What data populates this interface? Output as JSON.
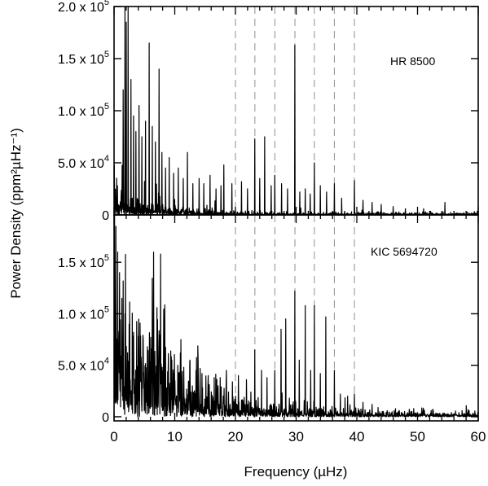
{
  "figure": {
    "xlabel": "Frequency (µHz)",
    "ylabel": "Power Density (ppm²µHz⁻¹)",
    "colors": {
      "axes": "#000000",
      "trace": "#000000",
      "guide": "#999999",
      "background": "#ffffff"
    }
  },
  "chart_data": [
    {
      "type": "line",
      "panel": "top",
      "label": "HR 8500",
      "xlim": [
        0,
        60
      ],
      "ylim": [
        0,
        200000
      ],
      "yticks": [
        {
          "value": 0,
          "mantissa": "0",
          "exp": ""
        },
        {
          "value": 50000,
          "mantissa": "5.0 x 10",
          "exp": "4"
        },
        {
          "value": 100000,
          "mantissa": "1.0 x 10",
          "exp": "5"
        },
        {
          "value": 150000,
          "mantissa": "1.5 x 10",
          "exp": "5"
        },
        {
          "value": 200000,
          "mantissa": "2.0 x 10",
          "exp": "5"
        }
      ],
      "vlines": [
        20.0,
        23.2,
        26.5,
        29.8,
        33.0,
        36.3,
        39.6
      ],
      "background": {
        "start": 20000,
        "decay": 6.5,
        "noise": 1200
      },
      "peaks": [
        {
          "x": 1.5,
          "y": 120000
        },
        {
          "x": 1.8,
          "y": 205000
        },
        {
          "x": 2.0,
          "y": 185000
        },
        {
          "x": 2.3,
          "y": 200000
        },
        {
          "x": 2.8,
          "y": 130000
        },
        {
          "x": 3.2,
          "y": 95000
        },
        {
          "x": 3.6,
          "y": 80000
        },
        {
          "x": 4.1,
          "y": 105000
        },
        {
          "x": 4.6,
          "y": 75000
        },
        {
          "x": 5.2,
          "y": 90000
        },
        {
          "x": 5.8,
          "y": 165000
        },
        {
          "x": 6.3,
          "y": 85000
        },
        {
          "x": 6.8,
          "y": 70000
        },
        {
          "x": 7.4,
          "y": 140000
        },
        {
          "x": 7.9,
          "y": 60000
        },
        {
          "x": 8.5,
          "y": 45000
        },
        {
          "x": 9.1,
          "y": 55000
        },
        {
          "x": 9.8,
          "y": 40000
        },
        {
          "x": 10.6,
          "y": 45000
        },
        {
          "x": 11.4,
          "y": 35000
        },
        {
          "x": 12.1,
          "y": 60000
        },
        {
          "x": 13.0,
          "y": 30000
        },
        {
          "x": 14.0,
          "y": 35000
        },
        {
          "x": 14.8,
          "y": 30000
        },
        {
          "x": 15.8,
          "y": 38000
        },
        {
          "x": 16.8,
          "y": 25000
        },
        {
          "x": 17.6,
          "y": 28000
        },
        {
          "x": 18.1,
          "y": 48000
        },
        {
          "x": 19.4,
          "y": 30000
        },
        {
          "x": 21.0,
          "y": 32000
        },
        {
          "x": 22.0,
          "y": 25000
        },
        {
          "x": 23.2,
          "y": 73000
        },
        {
          "x": 24.0,
          "y": 35000
        },
        {
          "x": 24.8,
          "y": 75000
        },
        {
          "x": 25.9,
          "y": 28000
        },
        {
          "x": 26.5,
          "y": 38000
        },
        {
          "x": 27.6,
          "y": 30000
        },
        {
          "x": 28.6,
          "y": 25000
        },
        {
          "x": 29.8,
          "y": 163000
        },
        {
          "x": 30.6,
          "y": 22000
        },
        {
          "x": 31.5,
          "y": 25000
        },
        {
          "x": 32.3,
          "y": 20000
        },
        {
          "x": 33.0,
          "y": 50000
        },
        {
          "x": 34.0,
          "y": 28000
        },
        {
          "x": 35.0,
          "y": 22000
        },
        {
          "x": 36.3,
          "y": 30000
        },
        {
          "x": 37.5,
          "y": 16000
        },
        {
          "x": 39.6,
          "y": 33000
        },
        {
          "x": 41.0,
          "y": 14000
        },
        {
          "x": 42.5,
          "y": 12000
        },
        {
          "x": 44.0,
          "y": 10000
        },
        {
          "x": 46.0,
          "y": 8000
        },
        {
          "x": 48.0,
          "y": 6000
        },
        {
          "x": 51.0,
          "y": 6000
        },
        {
          "x": 54.5,
          "y": 12000
        }
      ]
    },
    {
      "type": "line",
      "panel": "bottom",
      "label": "KIC 5694720",
      "xlim": [
        0,
        60
      ],
      "ylim": [
        -4000,
        196000
      ],
      "yticks": [
        {
          "value": 0,
          "mantissa": "0",
          "exp": ""
        },
        {
          "value": 50000,
          "mantissa": "5.0 x 10",
          "exp": "4"
        },
        {
          "value": 100000,
          "mantissa": "1.0 x 10",
          "exp": "5"
        },
        {
          "value": 150000,
          "mantissa": "1.5 x 10",
          "exp": "5"
        }
      ],
      "vlines": [
        20.0,
        23.2,
        26.5,
        29.8,
        33.0,
        36.3,
        39.6
      ],
      "background": {
        "start": 95000,
        "decay": 10,
        "noise": 2500
      },
      "peaks": [
        {
          "x": 0.1,
          "y": 196000
        },
        {
          "x": 0.3,
          "y": 185000
        },
        {
          "x": 0.6,
          "y": 160000
        },
        {
          "x": 0.9,
          "y": 140000
        },
        {
          "x": 1.3,
          "y": 115000
        },
        {
          "x": 1.8,
          "y": 100000
        },
        {
          "x": 2.5,
          "y": 90000
        },
        {
          "x": 3.2,
          "y": 82000
        },
        {
          "x": 4.0,
          "y": 78000
        },
        {
          "x": 4.8,
          "y": 72000
        },
        {
          "x": 5.5,
          "y": 68000
        },
        {
          "x": 6.5,
          "y": 160000
        },
        {
          "x": 7.5,
          "y": 62000
        },
        {
          "x": 8.5,
          "y": 58000
        },
        {
          "x": 9.5,
          "y": 55000
        },
        {
          "x": 10.5,
          "y": 50000
        },
        {
          "x": 11.5,
          "y": 48000
        },
        {
          "x": 12.5,
          "y": 55000
        },
        {
          "x": 13.5,
          "y": 45000
        },
        {
          "x": 14.5,
          "y": 42000
        },
        {
          "x": 15.5,
          "y": 40000
        },
        {
          "x": 16.5,
          "y": 38000
        },
        {
          "x": 17.5,
          "y": 38000
        },
        {
          "x": 18.5,
          "y": 45000
        },
        {
          "x": 19.5,
          "y": 34000
        },
        {
          "x": 20.5,
          "y": 40000
        },
        {
          "x": 21.8,
          "y": 36000
        },
        {
          "x": 23.2,
          "y": 65000
        },
        {
          "x": 24.3,
          "y": 45000
        },
        {
          "x": 25.2,
          "y": 38000
        },
        {
          "x": 26.5,
          "y": 45000
        },
        {
          "x": 27.5,
          "y": 85000
        },
        {
          "x": 28.3,
          "y": 95000
        },
        {
          "x": 29.8,
          "y": 122000
        },
        {
          "x": 30.5,
          "y": 55000
        },
        {
          "x": 31.5,
          "y": 108000
        },
        {
          "x": 32.4,
          "y": 45000
        },
        {
          "x": 33.0,
          "y": 108000
        },
        {
          "x": 34.0,
          "y": 42000
        },
        {
          "x": 34.9,
          "y": 97000
        },
        {
          "x": 36.3,
          "y": 45000
        },
        {
          "x": 37.3,
          "y": 22000
        },
        {
          "x": 38.5,
          "y": 20000
        },
        {
          "x": 39.6,
          "y": 22000
        },
        {
          "x": 41.0,
          "y": 14000
        },
        {
          "x": 42.5,
          "y": 12000
        },
        {
          "x": 43.5,
          "y": 9000
        },
        {
          "x": 45.0,
          "y": 6000
        },
        {
          "x": 47.0,
          "y": 5000
        },
        {
          "x": 50.0,
          "y": 4000
        },
        {
          "x": 53.0,
          "y": 3500
        },
        {
          "x": 56.0,
          "y": 3000
        }
      ]
    }
  ]
}
